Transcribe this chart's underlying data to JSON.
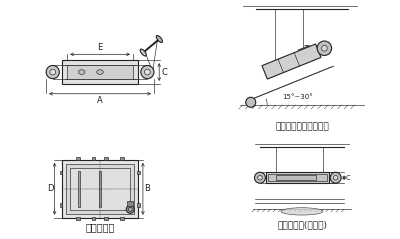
{
  "bg_color": "#ffffff",
  "label_bottom_left": "外形尺寸图",
  "label_incline": "安装示意图（倾斜式）",
  "label_horizontal": "安装示意图(水平式)",
  "label_angle": "15°~30°",
  "dim_A": "A",
  "dim_B": "B",
  "dim_C": "C",
  "dim_D": "D",
  "dim_E": "E"
}
